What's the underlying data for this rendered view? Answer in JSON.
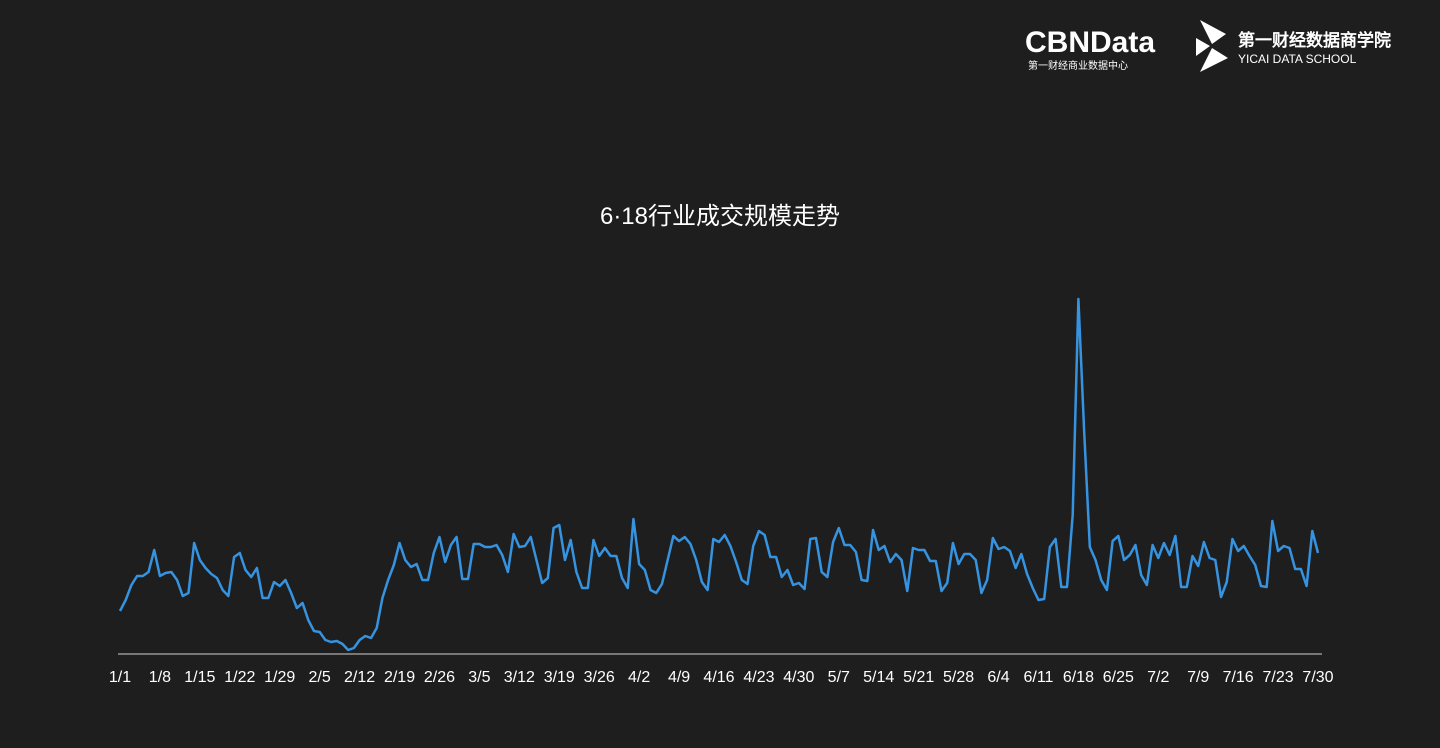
{
  "header": {
    "brand": "CBNData",
    "brand_sub": "第一财经商业数据中心",
    "school": "第一财经数据商学院",
    "school_en": "YICAI DATA SCHOOL"
  },
  "chart_data": {
    "type": "line",
    "title": "6·18行业成交规模走势",
    "color": "#3593e0",
    "categories": [
      "1/1",
      null,
      null,
      null,
      null,
      null,
      null,
      "1/8",
      null,
      null,
      null,
      null,
      null,
      null,
      "1/15",
      null,
      null,
      null,
      null,
      null,
      null,
      "1/22",
      null,
      null,
      null,
      null,
      null,
      null,
      "1/29",
      null,
      null,
      null,
      null,
      null,
      null,
      "2/5",
      null,
      null,
      null,
      null,
      null,
      null,
      "2/12",
      null,
      null,
      null,
      null,
      null,
      null,
      "2/19",
      null,
      null,
      null,
      null,
      null,
      null,
      "2/26",
      null,
      null,
      null,
      null,
      null,
      null,
      "3/5",
      null,
      null,
      null,
      null,
      null,
      null,
      "3/12",
      null,
      null,
      null,
      null,
      null,
      null,
      "3/19",
      null,
      null,
      null,
      null,
      null,
      null,
      "3/26",
      null,
      null,
      null,
      null,
      null,
      null,
      "4/2",
      null,
      null,
      null,
      null,
      null,
      null,
      "4/9",
      null,
      null,
      null,
      null,
      null,
      null,
      "4/16",
      null,
      null,
      null,
      null,
      null,
      null,
      "4/23",
      null,
      null,
      null,
      null,
      null,
      null,
      "4/30",
      null,
      null,
      null,
      null,
      null,
      null,
      "5/7",
      null,
      null,
      null,
      null,
      null,
      null,
      "5/14",
      null,
      null,
      null,
      null,
      null,
      null,
      "5/21",
      null,
      null,
      null,
      null,
      null,
      null,
      "5/28",
      null,
      null,
      null,
      null,
      null,
      null,
      "6/4",
      null,
      null,
      null,
      null,
      null,
      null,
      "6/11",
      null,
      null,
      null,
      null,
      null,
      null,
      "6/18",
      null,
      null,
      null,
      null,
      null,
      null,
      "6/25",
      null,
      null,
      null,
      null,
      null,
      null,
      "7/2",
      null,
      null,
      null,
      null,
      null,
      null,
      "7/9",
      null,
      null,
      null,
      null,
      null,
      null,
      "7/16",
      null,
      null,
      null,
      null,
      null,
      null,
      "7/23",
      null,
      null,
      null,
      null,
      null,
      null,
      "7/30"
    ],
    "values": [
      44,
      55,
      70,
      79,
      79,
      83,
      105,
      79,
      82,
      83,
      75,
      59,
      62,
      112,
      95,
      87,
      81,
      77,
      65,
      59,
      98,
      102,
      85,
      78,
      87,
      57,
      57,
      73,
      69,
      75,
      62,
      47,
      52,
      35,
      24,
      23,
      15,
      13,
      14,
      11,
      5,
      7,
      15,
      19,
      17,
      27,
      57,
      75,
      90,
      112,
      95,
      88,
      91,
      75,
      75,
      102,
      118,
      93,
      110,
      118,
      76,
      76,
      111,
      111,
      108,
      108,
      110,
      100,
      83,
      121,
      108,
      109,
      118,
      95,
      72,
      77,
      127,
      130,
      95,
      115,
      83,
      67,
      67,
      115,
      99,
      107,
      99,
      99,
      77,
      67,
      136,
      91,
      85,
      65,
      62,
      71,
      95,
      119,
      114,
      118,
      111,
      95,
      73,
      65,
      116,
      113,
      120,
      109,
      93,
      75,
      71,
      109,
      124,
      120,
      98,
      98,
      78,
      85,
      70,
      72,
      66,
      116,
      117,
      83,
      78,
      113,
      127,
      110,
      110,
      103,
      75,
      74,
      125,
      105,
      109,
      93,
      101,
      95,
      64,
      107,
      105,
      105,
      94,
      94,
      64,
      72,
      112,
      91,
      101,
      101,
      95,
      62,
      75,
      117,
      106,
      108,
      104,
      87,
      101,
      81,
      67,
      55,
      56,
      108,
      116,
      68,
      68,
      140,
      356,
      225,
      108,
      95,
      75,
      65,
      114,
      119,
      95,
      100,
      110,
      80,
      70,
      110,
      97,
      112,
      100,
      119,
      68,
      68,
      99,
      89,
      113,
      97,
      95,
      58,
      73,
      116,
      104,
      109,
      99,
      90,
      69,
      68,
      134,
      104,
      109,
      107,
      86,
      86,
      69,
      124,
      102
    ]
  }
}
